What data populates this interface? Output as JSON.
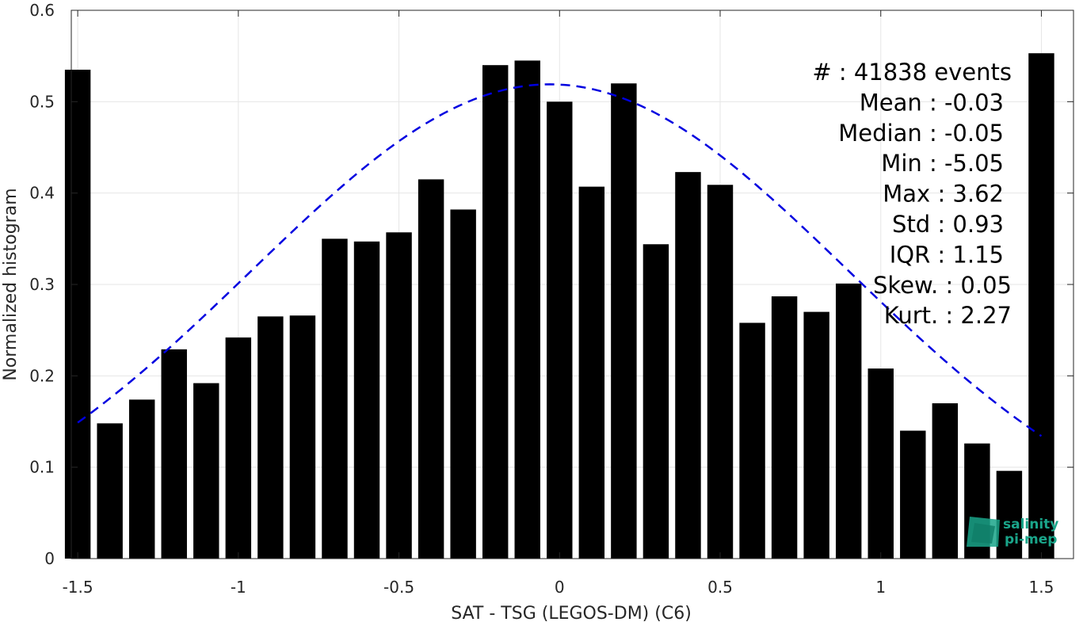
{
  "chart_data": {
    "type": "bar",
    "xlabel": "SAT - TSG (LEGOS-DM) (C6)",
    "ylabel": "Normalized histogram",
    "xlim": [
      -1.52,
      1.6
    ],
    "ylim": [
      0,
      0.6
    ],
    "xticks": [
      -1.5,
      -1,
      -0.5,
      0,
      0.5,
      1,
      1.5
    ],
    "xtick_labels": [
      "-1.5",
      "-1",
      "-0.5",
      "0",
      "0.5",
      "1",
      "1.5"
    ],
    "yticks": [
      0,
      0.1,
      0.2,
      0.3,
      0.4,
      0.5,
      0.6
    ],
    "ytick_labels": [
      "0",
      "0.1",
      "0.2",
      "0.3",
      "0.4",
      "0.5",
      "0.6"
    ],
    "grid": true,
    "bar_color": "#000000",
    "bar_width": 0.08,
    "x": [
      -1.5,
      -1.4,
      -1.3,
      -1.2,
      -1.1,
      -1.0,
      -0.9,
      -0.8,
      -0.7,
      -0.6,
      -0.5,
      -0.4,
      -0.3,
      -0.2,
      -0.1,
      0.0,
      0.1,
      0.2,
      0.3,
      0.4,
      0.5,
      0.6,
      0.7,
      0.8,
      0.9,
      1.0,
      1.1,
      1.2,
      1.3,
      1.4,
      1.5
    ],
    "values": [
      0.535,
      0.148,
      0.174,
      0.229,
      0.192,
      0.242,
      0.265,
      0.266,
      0.35,
      0.347,
      0.357,
      0.415,
      0.382,
      0.54,
      0.545,
      0.5,
      0.407,
      0.52,
      0.344,
      0.423,
      0.409,
      0.258,
      0.287,
      0.27,
      0.301,
      0.208,
      0.14,
      0.17,
      0.126,
      0.096,
      0.553
    ],
    "fit": {
      "style": "dashed",
      "color": "#0000e0",
      "mean": -0.03,
      "std": 0.93,
      "peak": 0.519,
      "xrange": [
        -1.5,
        1.5
      ]
    },
    "annotations": [
      "#  : 41838 events",
      "Mean : -0.03",
      "Median : -0.05",
      "Min : -5.05",
      "Max : 3.62",
      "Std : 0.93",
      "IQR : 1.15",
      "Skew. : 0.05",
      "Kurt. : 2.27"
    ]
  },
  "logo": {
    "line1": "salinity",
    "line2": "pi-mep",
    "color": "#1aa58a"
  }
}
